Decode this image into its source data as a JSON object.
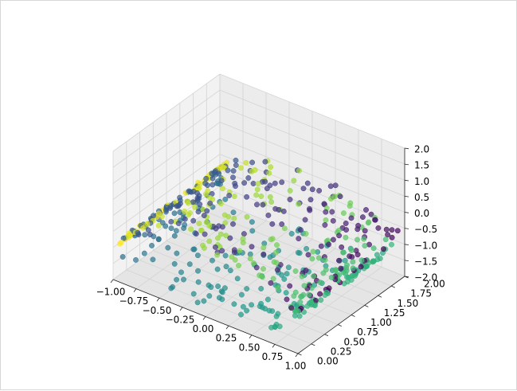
{
  "chart_data": {
    "type": "scatter",
    "subtype": "3d-scatter",
    "title": "",
    "xlabel": "",
    "ylabel": "",
    "zlabel": "",
    "xlim": [
      -1.0,
      1.0
    ],
    "ylim": [
      0.0,
      2.0
    ],
    "zlim": [
      -2.0,
      2.0
    ],
    "x_ticks": [
      "−1.00",
      "−0.75",
      "−0.50",
      "−0.25",
      "0.00",
      "0.25",
      "0.50",
      "0.75",
      "1.00"
    ],
    "y_ticks": [
      "0.00",
      "0.25",
      "0.50",
      "0.75",
      "1.00",
      "1.25",
      "1.50",
      "1.75",
      "2.00"
    ],
    "z_ticks": [
      "−2.0",
      "−1.5",
      "−1.0",
      "−0.5",
      "0.0",
      "0.5",
      "1.0",
      "1.5",
      "2.0"
    ],
    "grid": true,
    "colormap": "viridis",
    "color_by": "position along the spiral strip",
    "marker_alpha": 0.7,
    "point_count": 600
  }
}
